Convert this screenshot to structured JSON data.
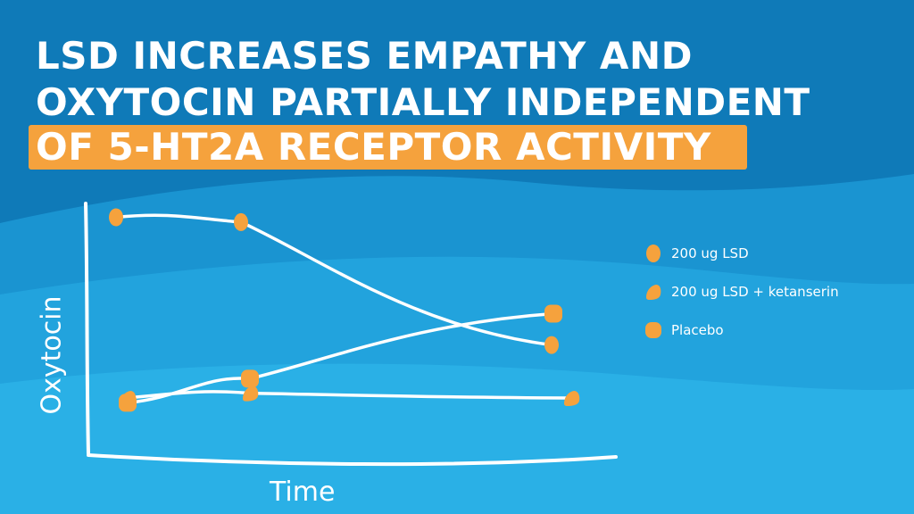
{
  "title": {
    "line1": "LSD INCREASES EMPATHY AND",
    "line2": "OXYTOCIN PARTIALLY INDEPENDENT",
    "line3": "OF 5-HT2A RECEPTOR ACTIVITY"
  },
  "colors": {
    "bg_dark": "#0f7ab8",
    "bg_mid": "#1a8fce",
    "bg_light": "#2ab0e6",
    "accent": "#f5a23d",
    "line": "#ffffff"
  },
  "chart_data": {
    "type": "line",
    "xlabel": "Time",
    "ylabel": "Oxytocin",
    "x": [
      1,
      2,
      3
    ],
    "grid": false,
    "legend": "right",
    "series": [
      {
        "name": "200 ug LSD",
        "marker": "ellipse",
        "values": [
          0.95,
          0.93,
          0.42
        ]
      },
      {
        "name": "200 ug LSD + ketanserin",
        "marker": "blob",
        "values": [
          0.2,
          0.22,
          0.2
        ]
      },
      {
        "name": "Placebo",
        "marker": "rounded",
        "values": [
          0.18,
          0.28,
          0.55
        ]
      }
    ]
  }
}
